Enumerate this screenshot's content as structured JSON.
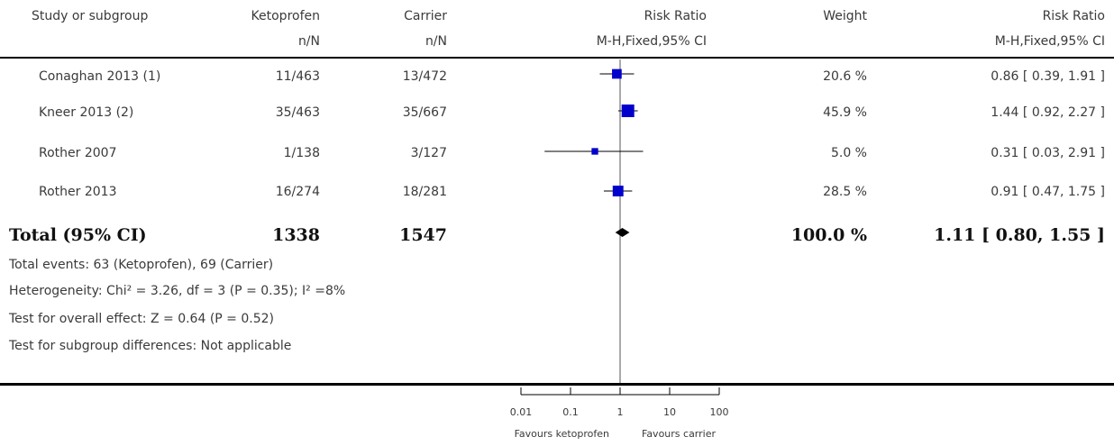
{
  "header": {
    "col_study": "Study or subgroup",
    "col_exp": "Ketoprofen",
    "col_ctl": "Carrier",
    "col_rr": "Risk Ratio",
    "col_weight": "Weight",
    "col_rr2": "Risk Ratio",
    "sub_exp": "n/N",
    "sub_ctl": "n/N",
    "sub_rr": "M-H,Fixed,95% CI",
    "sub_rr2": "M-H,Fixed,95% CI"
  },
  "rows": [
    {
      "study": "Conaghan 2013 (1)",
      "exp": "11/463",
      "ctl": "13/472",
      "weight": "20.6 %",
      "ci": "0.86 [ 0.39, 1.91 ]"
    },
    {
      "study": "Kneer 2013 (2)",
      "exp": "35/463",
      "ctl": "35/667",
      "weight": "45.9 %",
      "ci": "1.44 [ 0.92, 2.27 ]"
    },
    {
      "study": "Rother 2007",
      "exp": "1/138",
      "ctl": "3/127",
      "weight": "5.0 %",
      "ci": "0.31 [ 0.03, 2.91 ]"
    },
    {
      "study": "Rother 2013",
      "exp": "16/274",
      "ctl": "18/281",
      "weight": "28.5 %",
      "ci": "0.91 [ 0.47, 1.75 ]"
    }
  ],
  "total": {
    "label": "Total (95% CI)",
    "exp": "1338",
    "ctl": "1547",
    "weight": "100.0 %",
    "ci": "1.11 [ 0.80, 1.55 ]"
  },
  "footer": {
    "events": "Total events: 63 (Ketoprofen), 69 (Carrier)",
    "heterogeneity": "Heterogeneity: Chi² = 3.26, df = 3 (P = 0.35); I² =8%",
    "overall": "Test for overall effect: Z = 0.64 (P = 0.52)",
    "subgroup": "Test for subgroup differences: Not applicable"
  },
  "axis": {
    "favours_left": "Favours ketoprofen",
    "favours_right": "Favours carrier"
  },
  "colors": {
    "marker": "#0000cc",
    "line": "#000000"
  },
  "chart_data": {
    "type": "forest",
    "scale": "log",
    "xlim": [
      0.01,
      100
    ],
    "ticks": [
      0.01,
      0.1,
      1,
      10,
      100
    ],
    "tick_labels": [
      "0.01",
      "0.1",
      "1",
      "10",
      "100"
    ],
    "null_value": 1,
    "studies": [
      {
        "name": "Conaghan 2013 (1)",
        "rr": 0.86,
        "lo": 0.39,
        "hi": 1.91,
        "weight": 20.6
      },
      {
        "name": "Kneer 2013 (2)",
        "rr": 1.44,
        "lo": 0.92,
        "hi": 2.27,
        "weight": 45.9
      },
      {
        "name": "Rother 2007",
        "rr": 0.31,
        "lo": 0.03,
        "hi": 2.91,
        "weight": 5.0
      },
      {
        "name": "Rother 2013",
        "rr": 0.91,
        "lo": 0.47,
        "hi": 1.75,
        "weight": 28.5
      }
    ],
    "pooled": {
      "rr": 1.11,
      "lo": 0.8,
      "hi": 1.55
    }
  }
}
